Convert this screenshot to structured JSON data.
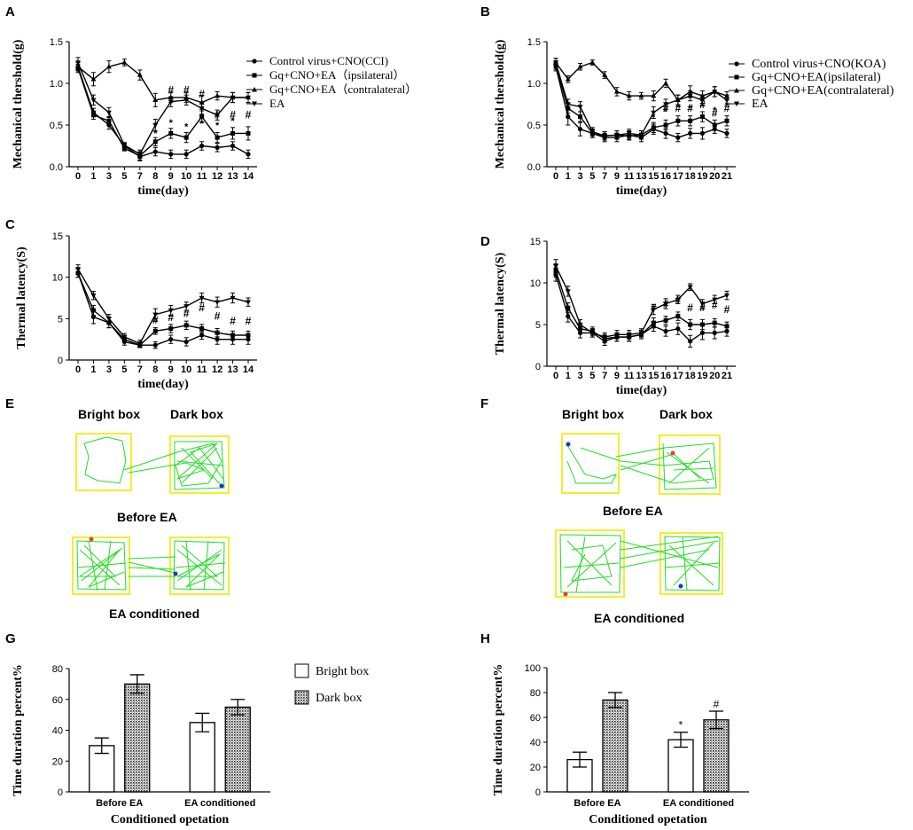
{
  "chart_data": [
    {
      "panel": "A",
      "type": "line",
      "title": "",
      "xlabel": "time(day)",
      "ylabel": "Mechanical thershold(g)",
      "ylim": [
        0,
        1.5
      ],
      "yticks": [
        0.0,
        0.5,
        1.0,
        1.5
      ],
      "categories": [
        "0",
        "1",
        "3",
        "5",
        "7",
        "8",
        "9",
        "10",
        "11",
        "12",
        "13",
        "14"
      ],
      "series": [
        {
          "name": "Control virus+CNO(CCI)",
          "marker": "circle",
          "values": [
            1.2,
            0.65,
            0.5,
            0.25,
            0.12,
            0.18,
            0.15,
            0.15,
            0.25,
            0.23,
            0.25,
            0.15
          ],
          "err": [
            0.05,
            0.05,
            0.05,
            0.03,
            0.05,
            0.05,
            0.05,
            0.05,
            0.05,
            0.05,
            0.05,
            0.05
          ]
        },
        {
          "name": "Gq+CNO+EA（ipsilateral）",
          "marker": "square",
          "values": [
            1.18,
            0.62,
            0.55,
            0.22,
            0.13,
            0.3,
            0.4,
            0.35,
            0.6,
            0.35,
            0.4,
            0.4
          ],
          "err": [
            0.05,
            0.05,
            0.05,
            0.03,
            0.05,
            0.05,
            0.06,
            0.06,
            0.07,
            0.06,
            0.07,
            0.08
          ]
        },
        {
          "name": "Gq+CNO+EA（contralateral）",
          "marker": "triangle-up",
          "values": [
            1.2,
            1.05,
            1.2,
            1.25,
            1.1,
            0.8,
            0.83,
            0.83,
            0.77,
            0.85,
            0.83,
            0.83
          ],
          "err": [
            0.05,
            0.08,
            0.07,
            0.04,
            0.06,
            0.08,
            0.06,
            0.06,
            0.08,
            0.05,
            0.06,
            0.06
          ]
        },
        {
          "name": "EA",
          "marker": "triangle-down",
          "values": [
            1.25,
            0.8,
            0.65,
            0.26,
            0.15,
            0.5,
            0.78,
            0.8,
            0.7,
            0.62,
            0.83,
            0.83
          ],
          "err": [
            0.06,
            0.06,
            0.06,
            0.03,
            0.05,
            0.07,
            0.06,
            0.06,
            0.07,
            0.06,
            0.06,
            0.06
          ]
        }
      ],
      "annotations": [
        {
          "text": "#",
          "x": "9",
          "y": 0.88
        },
        {
          "text": "#",
          "x": "10",
          "y": 0.88
        },
        {
          "text": "#",
          "x": "11",
          "y": 0.83
        },
        {
          "text": "#",
          "x": "12",
          "y": 0.58
        },
        {
          "text": "#",
          "x": "13",
          "y": 0.58
        },
        {
          "text": "#",
          "x": "14",
          "y": 0.58
        },
        {
          "text": "*",
          "x": "8",
          "y": 0.36
        },
        {
          "text": "*",
          "x": "9",
          "y": 0.49
        },
        {
          "text": "*",
          "x": "10",
          "y": 0.44
        },
        {
          "text": "*",
          "x": "11",
          "y": 0.48
        },
        {
          "text": "*",
          "x": "12",
          "y": 0.46
        },
        {
          "text": "*",
          "x": "13",
          "y": 0.51
        }
      ]
    },
    {
      "panel": "B",
      "type": "line",
      "title": "",
      "xlabel": "time(day)",
      "ylabel": "Mechanical thershold(g)",
      "ylim": [
        0,
        1.5
      ],
      "yticks": [
        0.0,
        0.5,
        1.0,
        1.5
      ],
      "categories": [
        "0",
        "1",
        "3",
        "5",
        "7",
        "9",
        "11",
        "13",
        "15",
        "16",
        "17",
        "18",
        "19",
        "20",
        "21"
      ],
      "series": [
        {
          "name": "Control virus+CNO(KOA)",
          "marker": "circle",
          "values": [
            1.2,
            0.6,
            0.45,
            0.4,
            0.35,
            0.35,
            0.38,
            0.35,
            0.45,
            0.4,
            0.35,
            0.4,
            0.4,
            0.45,
            0.4
          ],
          "err": [
            0.05,
            0.1,
            0.08,
            0.05,
            0.05,
            0.05,
            0.05,
            0.05,
            0.06,
            0.06,
            0.05,
            0.06,
            0.07,
            0.05,
            0.05
          ]
        },
        {
          "name": "Gq+CNO+EA(ipsilateral)",
          "marker": "square",
          "values": [
            1.22,
            0.7,
            0.6,
            0.4,
            0.37,
            0.38,
            0.37,
            0.38,
            0.47,
            0.5,
            0.55,
            0.55,
            0.6,
            0.5,
            0.55
          ],
          "err": [
            0.05,
            0.06,
            0.06,
            0.05,
            0.05,
            0.05,
            0.05,
            0.05,
            0.06,
            0.06,
            0.06,
            0.06,
            0.06,
            0.06,
            0.06
          ]
        },
        {
          "name": "Gq+CNO+EA(contralateral)",
          "marker": "triangle-up",
          "values": [
            1.25,
            1.05,
            1.2,
            1.25,
            1.1,
            0.9,
            0.85,
            0.85,
            0.85,
            1.0,
            0.8,
            0.9,
            0.85,
            0.9,
            0.85
          ],
          "err": [
            0.05,
            0.04,
            0.04,
            0.03,
            0.04,
            0.05,
            0.05,
            0.04,
            0.06,
            0.05,
            0.06,
            0.07,
            0.06,
            0.06,
            0.05
          ]
        },
        {
          "name": "EA",
          "marker": "triangle-down",
          "values": [
            1.25,
            0.75,
            0.72,
            0.42,
            0.37,
            0.38,
            0.4,
            0.38,
            0.65,
            0.75,
            0.8,
            0.85,
            0.8,
            0.9,
            0.8
          ],
          "err": [
            0.05,
            0.06,
            0.06,
            0.05,
            0.05,
            0.05,
            0.05,
            0.05,
            0.07,
            0.06,
            0.06,
            0.06,
            0.06,
            0.06,
            0.06
          ]
        }
      ],
      "annotations": [
        {
          "text": "#",
          "x": "16",
          "y": 0.66
        },
        {
          "text": "#",
          "x": "17",
          "y": 0.66
        },
        {
          "text": "#",
          "x": "18",
          "y": 0.66
        },
        {
          "text": "#",
          "x": "19",
          "y": 0.7
        },
        {
          "text": "#",
          "x": "20",
          "y": 0.6
        },
        {
          "text": "#",
          "x": "21",
          "y": 0.66
        },
        {
          "text": "*",
          "x": "15",
          "y": 0.56
        },
        {
          "text": "*",
          "x": "16",
          "y": 0.62
        },
        {
          "text": "*",
          "x": "17",
          "y": 0.68
        },
        {
          "text": "*",
          "x": "18",
          "y": 0.66
        },
        {
          "text": "*",
          "x": "19",
          "y": 0.78
        },
        {
          "text": "*",
          "x": "20",
          "y": 0.64
        },
        {
          "text": "*",
          "x": "21",
          "y": 0.7
        }
      ]
    },
    {
      "panel": "C",
      "type": "line",
      "title": "",
      "xlabel": "time(day)",
      "ylabel": "Thermal latency(S)",
      "ylim": [
        0,
        15
      ],
      "yticks": [
        0,
        5,
        10,
        15
      ],
      "categories": [
        "0",
        "1",
        "3",
        "5",
        "7",
        "8",
        "9",
        "10",
        "11",
        "12",
        "13",
        "14"
      ],
      "series": [
        {
          "name": "Control virus+CNO(CCI)",
          "marker": "circle",
          "values": [
            10.5,
            5.2,
            4.5,
            2.2,
            1.8,
            1.8,
            2.5,
            2.2,
            3.0,
            2.5,
            2.5,
            2.5
          ],
          "err": [
            0.5,
            0.8,
            0.6,
            0.4,
            0.3,
            0.4,
            0.5,
            0.5,
            0.5,
            0.6,
            0.6,
            0.6
          ]
        },
        {
          "name": "Gq+CNO+EA（ipsilateral）",
          "marker": "square",
          "values": [
            10.5,
            6.0,
            4.5,
            2.5,
            1.8,
            3.5,
            3.8,
            4.2,
            3.8,
            3.3,
            3.0,
            3.0
          ],
          "err": [
            0.5,
            0.6,
            0.6,
            0.4,
            0.3,
            0.4,
            0.5,
            0.5,
            0.5,
            0.5,
            0.5,
            0.5
          ]
        },
        {
          "name": "EA",
          "marker": "triangle-down",
          "values": [
            11.0,
            7.8,
            5.0,
            2.8,
            2.0,
            5.5,
            6.0,
            6.5,
            7.5,
            7.0,
            7.5,
            7.0
          ],
          "err": [
            0.5,
            0.5,
            0.5,
            0.4,
            0.4,
            0.7,
            0.6,
            0.5,
            0.6,
            0.6,
            0.6,
            0.5
          ]
        }
      ],
      "annotations": [
        {
          "text": "#",
          "x": "8",
          "y": 4.4
        },
        {
          "text": "#",
          "x": "9",
          "y": 4.7
        },
        {
          "text": "#",
          "x": "10",
          "y": 5.2
        },
        {
          "text": "#",
          "x": "11",
          "y": 5.9
        },
        {
          "text": "#",
          "x": "12",
          "y": 4.9
        },
        {
          "text": "#",
          "x": "13",
          "y": 4.3
        },
        {
          "text": "#",
          "x": "14",
          "y": 4.3
        }
      ]
    },
    {
      "panel": "D",
      "type": "line",
      "title": "",
      "xlabel": "time(day)",
      "ylabel": "Thermal latency(S)",
      "ylim": [
        0,
        15
      ],
      "yticks": [
        0,
        5,
        10,
        15
      ],
      "categories": [
        "0",
        "1",
        "3",
        "5",
        "7",
        "9",
        "11",
        "13",
        "15",
        "16",
        "17",
        "18",
        "19",
        "20",
        "21"
      ],
      "series": [
        {
          "name": "Control virus+CNO(KOA)",
          "marker": "circle",
          "values": [
            11.0,
            6.0,
            4.0,
            4.0,
            3.0,
            3.5,
            3.5,
            3.8,
            4.8,
            4.2,
            4.5,
            3.0,
            4.0,
            4.0,
            4.2
          ],
          "err": [
            0.8,
            0.7,
            0.6,
            0.5,
            0.5,
            0.5,
            0.5,
            0.5,
            0.6,
            0.6,
            0.7,
            0.7,
            0.8,
            0.7,
            0.6
          ]
        },
        {
          "name": "Gq+CNO+EA(ipsilateral)",
          "marker": "square",
          "values": [
            11.5,
            7.0,
            4.5,
            4.2,
            3.3,
            3.5,
            3.5,
            3.8,
            5.2,
            5.5,
            6.0,
            5.0,
            5.0,
            5.2,
            4.8
          ],
          "err": [
            0.8,
            0.6,
            0.6,
            0.5,
            0.5,
            0.5,
            0.5,
            0.5,
            0.6,
            0.5,
            0.5,
            0.6,
            0.6,
            0.5,
            0.5
          ]
        },
        {
          "name": "EA",
          "marker": "triangle-down",
          "values": [
            12.0,
            9.0,
            5.0,
            4.0,
            3.5,
            3.8,
            3.8,
            4.0,
            6.8,
            7.5,
            8.0,
            9.5,
            7.5,
            8.0,
            8.5
          ],
          "err": [
            0.8,
            0.6,
            0.6,
            0.5,
            0.5,
            0.5,
            0.5,
            0.5,
            0.6,
            0.6,
            0.5,
            0.4,
            0.5,
            0.5,
            0.5
          ]
        }
      ],
      "annotations": [
        {
          "text": "#",
          "x": "15",
          "y": 6.6
        },
        {
          "text": "#",
          "x": "16",
          "y": 7.0
        },
        {
          "text": "#",
          "x": "17",
          "y": 7.5
        },
        {
          "text": "#",
          "x": "18",
          "y": 6.6
        },
        {
          "text": "#",
          "x": "19",
          "y": 6.6
        },
        {
          "text": "#",
          "x": "20",
          "y": 6.9
        },
        {
          "text": "#",
          "x": "21",
          "y": 6.4
        }
      ]
    },
    {
      "panel": "G",
      "type": "bar",
      "title": "",
      "xlabel": "Conditioned opetation",
      "ylabel": "Time duration percent%",
      "ylim": [
        0,
        80
      ],
      "yticks": [
        0,
        20,
        40,
        60,
        80
      ],
      "categories": [
        "Before EA",
        "EA conditioned"
      ],
      "series": [
        {
          "name": "Bright box",
          "fill": "white",
          "values": [
            30,
            45
          ],
          "err": [
            5,
            6
          ]
        },
        {
          "name": "Dark box",
          "fill": "dotted",
          "values": [
            70,
            55
          ],
          "err": [
            6,
            5
          ]
        }
      ],
      "annotations": []
    },
    {
      "panel": "H",
      "type": "bar",
      "title": "",
      "xlabel": "Conditioned opetation",
      "ylabel": "Time duration percent%",
      "ylim": [
        0,
        100
      ],
      "yticks": [
        0,
        20,
        40,
        60,
        80,
        100
      ],
      "categories": [
        "Before EA",
        "EA conditioned"
      ],
      "series": [
        {
          "name": "Bright box",
          "fill": "white",
          "values": [
            26,
            42
          ],
          "err": [
            6,
            6
          ]
        },
        {
          "name": "Dark box",
          "fill": "dotted",
          "values": [
            74,
            58
          ],
          "err": [
            6,
            7
          ]
        }
      ],
      "annotations": [
        {
          "text": "*",
          "category": "EA conditioned",
          "series": "Bright box",
          "y": 51
        },
        {
          "text": "#",
          "category": "EA conditioned",
          "series": "Dark box",
          "y": 68
        }
      ]
    }
  ],
  "panels": {
    "A": "A",
    "B": "B",
    "C": "C",
    "D": "D",
    "E": "E",
    "F": "F",
    "G": "G",
    "H": "H"
  },
  "legends": {
    "A": [
      "Control virus+CNO(CCI)",
      "Gq+CNO+EA（ipsilateral）",
      "Gq+CNO+EA（contralateral）",
      "EA"
    ],
    "B": [
      "Control virus+CNO(KOA)",
      "Gq+CNO+EA(ipsilateral)",
      "Gq+CNO+EA(contralateral)",
      "EA"
    ],
    "G": [
      "Bright box",
      "Dark box"
    ]
  },
  "place_preference": {
    "E": {
      "bright_label": "Bright box",
      "dark_label": "Dark box",
      "before_label": "Before EA",
      "after_label": "EA conditioned"
    },
    "F": {
      "bright_label": "Bright box",
      "dark_label": "Dark box",
      "before_label": "Before EA",
      "after_label": "EA conditioned"
    }
  },
  "colors": {
    "axis": "#000000",
    "box_border": "#f2ef2a",
    "track": "#22dd22",
    "start_dot": "#2233cc",
    "end_dot": "#dd4422"
  }
}
